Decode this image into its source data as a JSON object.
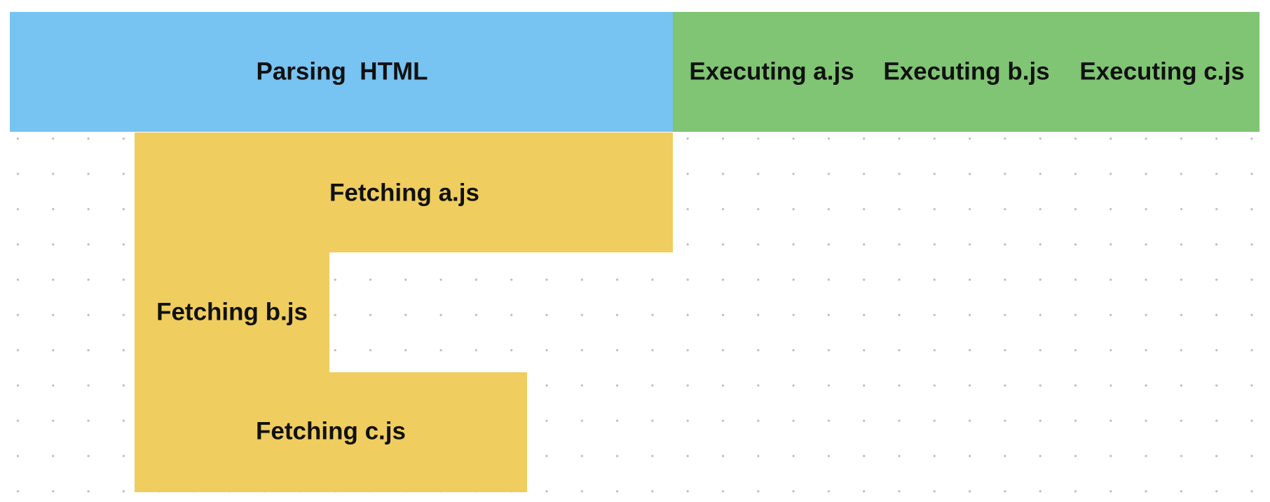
{
  "parsing": {
    "label": "Parsing  HTML"
  },
  "executing": [
    {
      "label": "Executing a.js"
    },
    {
      "label": "Executing b.js"
    },
    {
      "label": "Executing c.js"
    }
  ],
  "fetching": [
    {
      "label": "Fetching a.js"
    },
    {
      "label": "Fetching b.js"
    },
    {
      "label": "Fetching c.js"
    }
  ]
}
